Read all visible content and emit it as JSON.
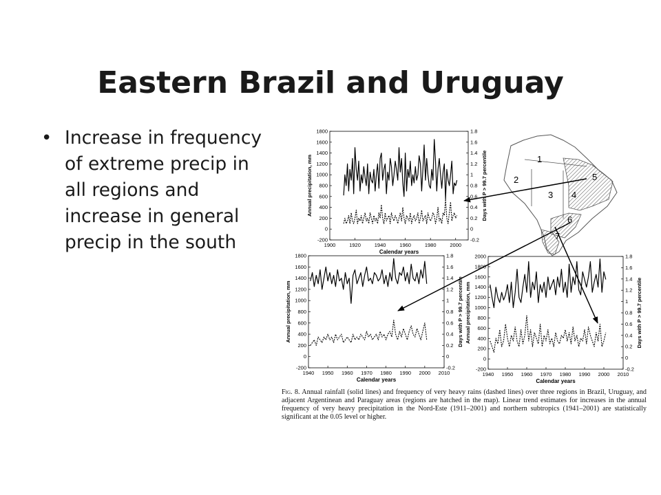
{
  "slide": {
    "title": "Eastern Brazil and Uruguay",
    "bullets": [
      "Increase in frequency of extreme precip in all regions and increase in general precip in the south"
    ]
  },
  "figure": {
    "caption_lead": "Fig. 8.",
    "caption_text": " Annual rainfall (solid lines) and frequency of very heavy rains (dashed lines) over three regions in Brazil, Uruguay, and adjacent Argentinean and Paraguay areas (regions are hatched in the map). Linear trend estimates for increases in the annual frequency of very heavy precipitation in the Nord-Este (1911–2001) and northern subtropics (1941–2001) are statistically significant at the 0.05 level or higher.",
    "map_region_labels": [
      "1",
      "2",
      "3",
      "4",
      "5",
      "6",
      "7"
    ]
  },
  "chart_data": [
    {
      "type": "line",
      "panel": "top",
      "xlabel": "Calendar years",
      "ylabel": "Annual precipitation, mm",
      "y2label": "Days with P > 99.7 percentile",
      "xlim": [
        1900,
        2010
      ],
      "ylim": [
        -200,
        1800
      ],
      "y2lim": [
        -0.2,
        1.8
      ],
      "x_ticks": [
        "1900",
        "1920",
        "1940",
        "1960",
        "1980",
        "2000"
      ],
      "y_ticks": [
        "-200",
        "0",
        "200",
        "400",
        "600",
        "800",
        "1000",
        "1200",
        "1400",
        "1600",
        "1800"
      ],
      "y2_ticks": [
        "-0.2",
        "0",
        "0.2",
        "0.4",
        "0.6",
        "0.8",
        "1",
        "1.2",
        "1.4",
        "1.6",
        "1.8"
      ],
      "series": [
        {
          "style": "solid",
          "x_start": 1911,
          "values": [
            620,
            1000,
            800,
            1200,
            700,
            1100,
            900,
            1300,
            650,
            1500,
            1100,
            900,
            1250,
            700,
            1000,
            850,
            1150,
            950,
            800,
            1200,
            650,
            1050,
            900,
            850,
            1100,
            700,
            1000,
            1200,
            750,
            1300,
            1400,
            900,
            1100,
            1200,
            650,
            1050,
            900,
            1300,
            1150,
            800,
            1000,
            1250,
            1100,
            900,
            1500,
            1050,
            1300,
            850,
            600,
            1400,
            700,
            1100,
            950,
            1250,
            800,
            1000,
            850,
            1150,
            900,
            1000,
            1350,
            1200,
            700,
            1100,
            1550,
            900,
            1300,
            1000,
            800,
            750,
            1100,
            900,
            1650,
            1250,
            700,
            1100,
            1300,
            1000,
            750,
            1050,
            1200,
            550,
            1100,
            900,
            800,
            1000,
            1250,
            650,
            850,
            800,
            900
          ]
        },
        {
          "style": "dashed",
          "x_start": 1911,
          "values": [
            0.1,
            0.2,
            0.1,
            0.15,
            0.25,
            0.1,
            0.3,
            0.15,
            0.1,
            0.2,
            0.35,
            0.1,
            0.2,
            0.15,
            0.25,
            0.1,
            0.2,
            0.3,
            0.15,
            0.2,
            0.1,
            0.3,
            0.2,
            0.1,
            0.25,
            0.15,
            0.2,
            0.1,
            0.3,
            0.2,
            0.45,
            0.2,
            0.1,
            0.3,
            0.15,
            0.2,
            0.25,
            0.1,
            0.3,
            0.2,
            0.15,
            0.25,
            0.2,
            0.1,
            0.2,
            0.3,
            0.15,
            0.4,
            0.2,
            0.1,
            0.25,
            0.2,
            0.15,
            0.3,
            0.1,
            0.2,
            0.25,
            0.15,
            0.2,
            0.3,
            0.1,
            0.2,
            0.35,
            0.15,
            0.2,
            0.25,
            0.1,
            0.3,
            0.2,
            0.15,
            0.2,
            0.3,
            0.25,
            0.1,
            0.2,
            0.4,
            0.15,
            0.2,
            0.1,
            0.3,
            0.25,
            0.55,
            0.2,
            0.1,
            0.3,
            0.5,
            0.15,
            0.25,
            0.3,
            0.2,
            0.25
          ]
        }
      ]
    },
    {
      "type": "line",
      "panel": "bottom-left",
      "xlabel": "Calendar years",
      "ylabel": "Annual precipitation, mm",
      "y2label": "Days with P > 99.7 percentile",
      "xlim": [
        1940,
        2010
      ],
      "ylim": [
        -200,
        1800
      ],
      "y2lim": [
        -0.2,
        1.8
      ],
      "x_ticks": [
        "1940",
        "1950",
        "1960",
        "1970",
        "1980",
        "1990",
        "2000",
        "2010"
      ],
      "y_ticks": [
        "-200",
        "0",
        "200",
        "400",
        "600",
        "800",
        "1000",
        "1200",
        "1400",
        "1600",
        "1800"
      ],
      "y2_ticks": [
        "-0.2",
        "0",
        "0.2",
        "0.4",
        "0.6",
        "0.8",
        "1",
        "1.2",
        "1.4",
        "1.6",
        "1.8"
      ],
      "series": [
        {
          "style": "solid",
          "x_start": 1941,
          "values": [
            1350,
            1500,
            1250,
            1450,
            1300,
            1550,
            1200,
            1400,
            1600,
            1350,
            1500,
            1300,
            1450,
            1250,
            1550,
            1350,
            1400,
            1200,
            1500,
            1300,
            1400,
            950,
            1450,
            1550,
            1300,
            1400,
            1500,
            1250,
            1450,
            1600,
            1350,
            1400,
            1300,
            1500,
            1450,
            1350,
            1400,
            1550,
            1300,
            1450,
            1250,
            1500,
            1350,
            1750,
            1400,
            1300,
            1500,
            1450,
            1600,
            1350,
            1500,
            1300,
            1650,
            1400,
            1350,
            1500,
            1300,
            1550,
            1400,
            1700,
            1300
          ]
        },
        {
          "style": "dashed",
          "x_start": 1941,
          "values": [
            0.2,
            0.25,
            0.3,
            0.2,
            0.35,
            0.3,
            0.25,
            0.35,
            0.3,
            0.4,
            0.3,
            0.35,
            0.25,
            0.4,
            0.3,
            0.35,
            0.4,
            0.25,
            0.3,
            0.35,
            0.3,
            0.25,
            0.4,
            0.3,
            0.35,
            0.3,
            0.4,
            0.35,
            0.3,
            0.45,
            0.35,
            0.4,
            0.3,
            0.35,
            0.4,
            0.3,
            0.45,
            0.35,
            0.4,
            0.3,
            0.4,
            0.45,
            0.35,
            0.65,
            0.4,
            0.3,
            0.45,
            0.35,
            0.5,
            0.4,
            0.3,
            0.45,
            0.55,
            0.4,
            0.35,
            0.5,
            0.4,
            0.3,
            0.45,
            0.6,
            0.3
          ]
        }
      ]
    },
    {
      "type": "line",
      "panel": "bottom-right",
      "xlabel": "Calendar years",
      "ylabel": "Annual precipitation, mm",
      "y2label": "Days with P > 99.7 percentile",
      "xlim": [
        1940,
        2010
      ],
      "ylim": [
        -200,
        2000
      ],
      "y2lim": [
        -0.2,
        1.8
      ],
      "x_ticks": [
        "1940",
        "1950",
        "1960",
        "1970",
        "1980",
        "1990",
        "2000",
        "2010"
      ],
      "y_ticks": [
        "-200",
        "0",
        "200",
        "400",
        "600",
        "800",
        "1000",
        "1200",
        "1400",
        "1600",
        "1800",
        "2000"
      ],
      "y2_ticks": [
        "-0.2",
        "0",
        "0.2",
        "0.4",
        "0.6",
        "0.8",
        "1",
        "1.2",
        "1.4",
        "1.6",
        "1.8"
      ],
      "series": [
        {
          "style": "solid",
          "x_start": 1941,
          "values": [
            1450,
            1200,
            1000,
            1400,
            1200,
            1100,
            1300,
            1150,
            1250,
            1450,
            1100,
            1500,
            1000,
            1300,
            1750,
            1200,
            1100,
            1400,
            1650,
            1300,
            1900,
            1200,
            1500,
            1350,
            1700,
            1100,
            1450,
            1300,
            1500,
            1200,
            1600,
            1350,
            1450,
            1550,
            1250,
            1600,
            1400,
            1750,
            1300,
            1500,
            1200,
            1850,
            1300,
            1600,
            1450,
            1900,
            1350,
            1250,
            1700,
            1550,
            1400,
            1600,
            1900,
            1300,
            1500,
            1650,
            1400,
            1950,
            1300,
            1700,
            1550
          ]
        },
        {
          "style": "dashed",
          "x_start": 1941,
          "values": [
            0.3,
            0.2,
            0.1,
            0.35,
            0.25,
            0.5,
            0.2,
            0.3,
            0.6,
            0.35,
            0.2,
            0.4,
            0.3,
            0.55,
            0.3,
            0.2,
            0.5,
            0.25,
            0.4,
            0.75,
            0.3,
            0.5,
            0.2,
            0.45,
            0.35,
            0.25,
            0.6,
            0.2,
            0.4,
            0.3,
            0.5,
            0.25,
            0.35,
            0.2,
            0.45,
            0.3,
            0.25,
            0.4,
            0.35,
            0.5,
            0.3,
            0.45,
            0.25,
            0.55,
            0.3,
            0.4,
            0.2,
            0.35,
            0.3,
            0.5,
            0.25,
            0.55,
            0.4,
            0.3,
            0.2,
            0.45,
            0.3,
            0.6,
            0.2,
            0.3,
            0.45
          ]
        }
      ]
    }
  ]
}
